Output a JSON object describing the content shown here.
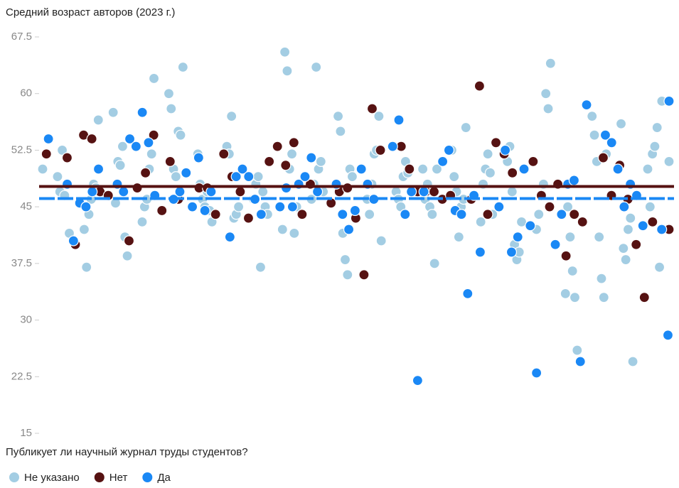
{
  "chart_data": {
    "type": "strip",
    "title": "Средний возраст авторов (2023 г.)",
    "legend_title": "Публикует ли научный журнал труды студентов?",
    "ylim": [
      15,
      67.5
    ],
    "yticks": [
      15,
      22.5,
      30,
      37.5,
      45,
      52.5,
      60,
      67.5
    ],
    "series": [
      {
        "name": "Не указано",
        "color": "#a3cde3",
        "values": [
          50,
          49,
          47,
          52.5,
          46.5,
          48,
          41.5,
          42,
          37,
          44,
          46,
          48,
          47.5,
          56.5,
          57.5,
          45.5,
          51,
          50.5,
          53,
          41,
          38.5,
          43,
          45,
          46,
          50,
          52,
          62,
          60,
          58,
          50,
          49,
          55,
          54.5,
          63.5,
          52,
          48,
          46,
          45,
          47,
          44.5,
          43,
          53,
          52,
          57,
          43.5,
          44,
          45,
          46,
          48,
          49,
          37,
          47,
          45,
          44,
          42,
          65.5,
          63,
          50,
          52,
          41.5,
          45,
          46,
          48,
          63.5,
          50,
          51,
          47,
          57,
          55,
          41.5,
          38,
          36,
          50,
          49,
          46,
          44,
          48,
          52,
          52.5,
          57,
          40.5,
          47,
          46,
          45,
          49,
          51,
          49.5,
          50,
          46,
          48,
          45,
          44,
          37.5,
          50,
          52.5,
          49,
          47,
          41,
          45,
          46,
          55.5,
          43,
          48,
          50,
          52,
          49.5,
          44,
          51,
          53,
          47,
          40,
          38,
          39,
          43,
          42,
          44,
          46.5,
          48,
          60,
          58,
          64,
          33.5,
          45,
          41,
          36.5,
          33,
          26,
          57,
          54.5,
          51,
          41,
          35.5,
          33,
          52,
          56,
          39.5,
          38,
          42,
          43.5,
          24.5,
          50,
          45,
          52,
          53,
          55.5,
          37,
          59,
          51
        ]
      },
      {
        "name": "Нет",
        "color": "#561212",
        "mean": 47.7,
        "values": [
          52,
          51.5,
          40,
          54.5,
          54,
          47,
          46.5,
          40.5,
          47.5,
          49.5,
          54.5,
          44.5,
          51,
          46,
          47.5,
          47.5,
          44,
          52,
          49,
          47,
          43.5,
          51,
          53,
          50.5,
          53.5,
          44,
          48,
          45.5,
          47,
          47.5,
          43.5,
          36,
          58,
          52.5,
          53,
          50,
          47,
          47,
          47,
          46,
          46.5,
          46,
          61,
          44,
          53.5,
          52,
          49.5,
          51,
          46.5,
          45,
          48,
          38.5,
          44,
          43,
          51.5,
          46.5,
          50.5,
          46,
          40,
          33,
          43,
          42
        ]
      },
      {
        "name": "Да",
        "color": "#1a88f5",
        "mean": 46.1,
        "values": [
          54,
          48,
          40.5,
          45.5,
          45,
          47,
          50,
          48,
          47,
          54,
          53,
          57.5,
          53.5,
          46.5,
          46,
          47,
          49.5,
          45,
          51.5,
          44.5,
          47,
          41,
          49,
          50,
          49,
          46,
          44,
          45,
          47.5,
          45,
          48,
          49,
          51.5,
          47,
          48,
          44,
          42,
          44.5,
          50,
          48,
          46,
          53,
          56.5,
          44,
          47,
          22,
          47,
          51,
          52.5,
          44.5,
          44,
          33.5,
          46.5,
          39,
          45,
          52.5,
          39,
          41,
          50,
          42.5,
          23,
          40,
          44,
          48,
          48.5,
          24.5,
          58.5,
          54.5,
          53.5,
          50,
          45,
          48,
          46.5,
          42.5,
          42,
          28,
          59
        ]
      }
    ]
  }
}
